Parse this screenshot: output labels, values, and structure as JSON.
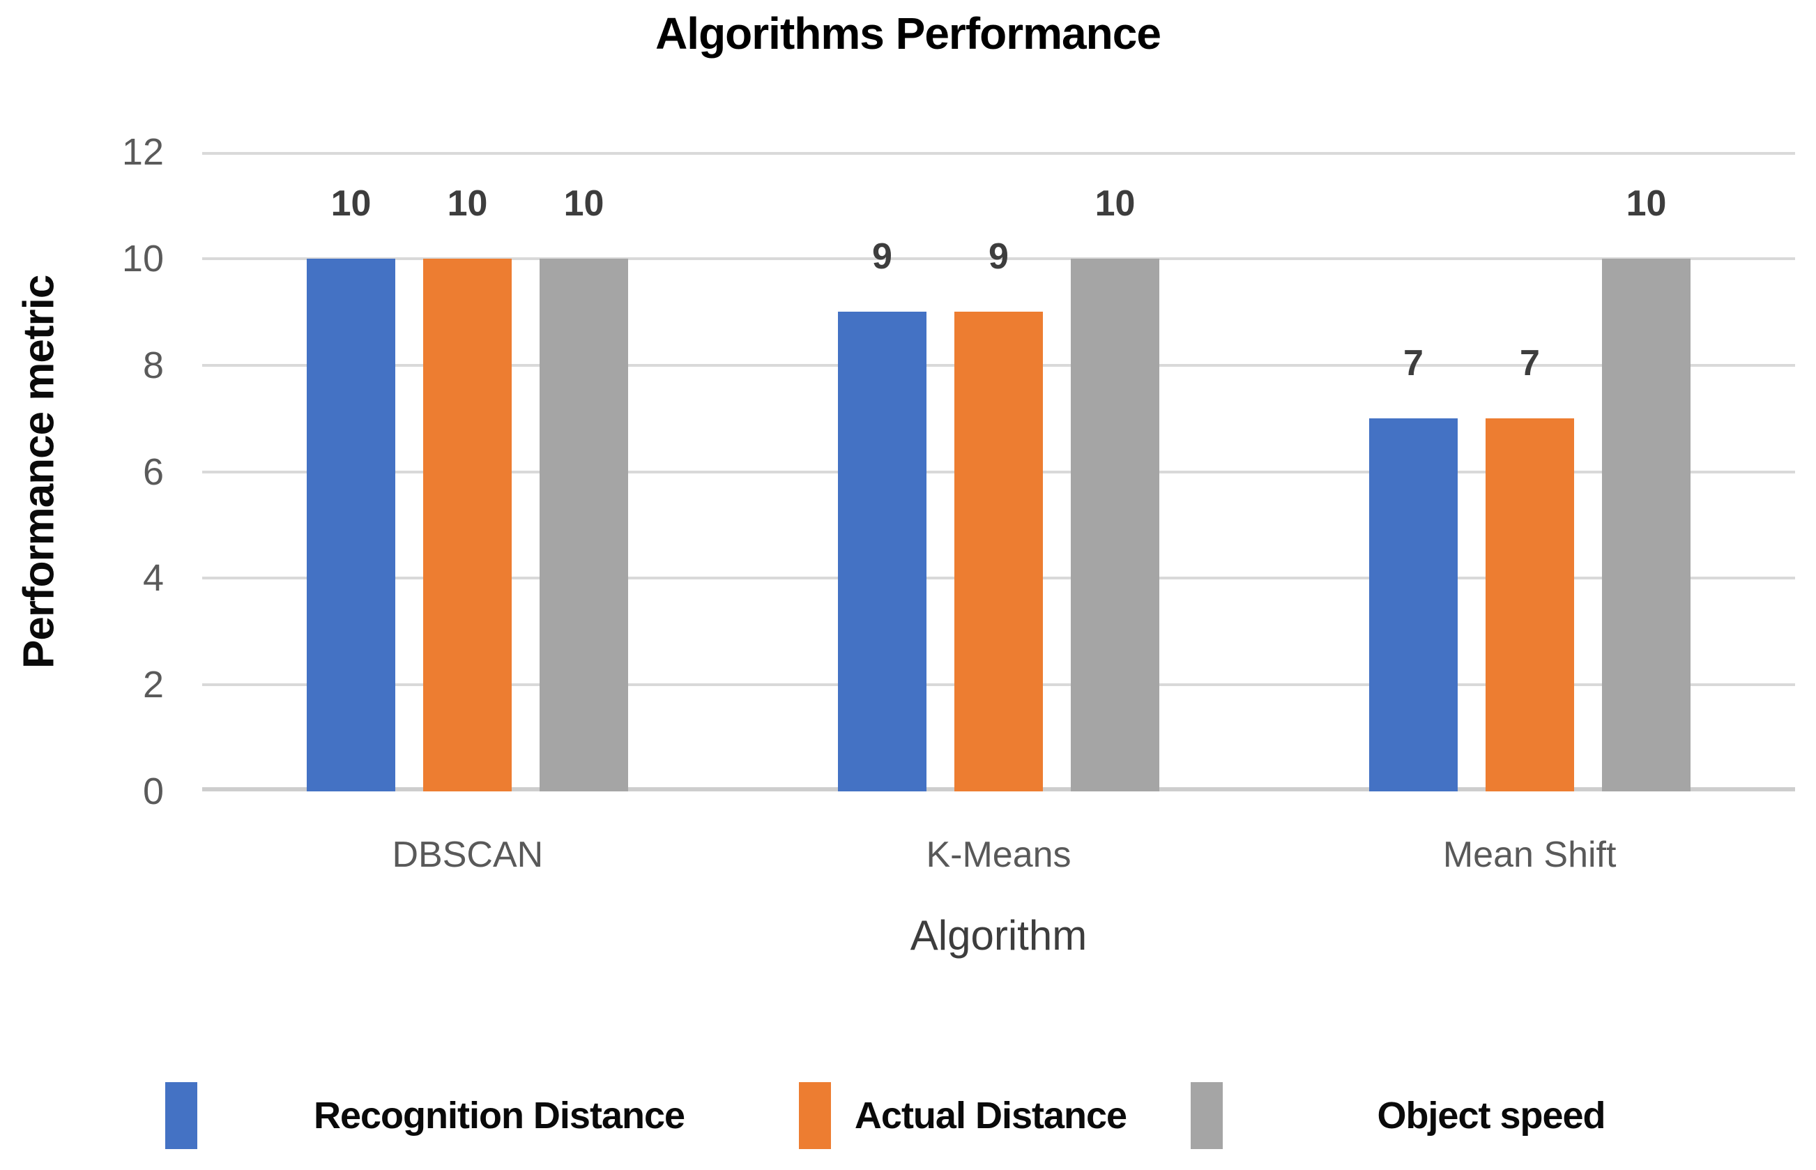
{
  "page": {
    "background": "#FFFFFF"
  },
  "chart_data": {
    "type": "bar",
    "title": "Algorithms Performance",
    "xlabel": "Algorithm",
    "ylabel": "Performance metric",
    "categories": [
      "DBSCAN",
      "K-Means",
      "Mean Shift"
    ],
    "series": [
      {
        "name": "Recognition Distance",
        "color": "#4472C4",
        "values": [
          10,
          9,
          7
        ]
      },
      {
        "name": "Actual Distance",
        "color": "#ED7D31",
        "values": [
          10,
          9,
          7
        ]
      },
      {
        "name": "Object speed",
        "color": "#A5A5A5",
        "values": [
          10,
          10,
          10
        ]
      }
    ],
    "data_labels": {
      "DBSCAN": [
        "10",
        "10",
        "10"
      ],
      "K-Means": [
        "9",
        "9",
        "10"
      ],
      "Mean Shift": [
        "7",
        "7",
        "10"
      ]
    },
    "ylim": [
      0,
      12
    ],
    "ytick_step": 2,
    "yticks": [
      0,
      2,
      4,
      6,
      8,
      10,
      12
    ],
    "grid": true,
    "gridline_color": "#D9D9D9",
    "axis_line_color": "#CDCDCD",
    "tick_label_color": "#5A5A5A",
    "data_label_color": "#3D3D3D",
    "legend_position": "bottom"
  }
}
